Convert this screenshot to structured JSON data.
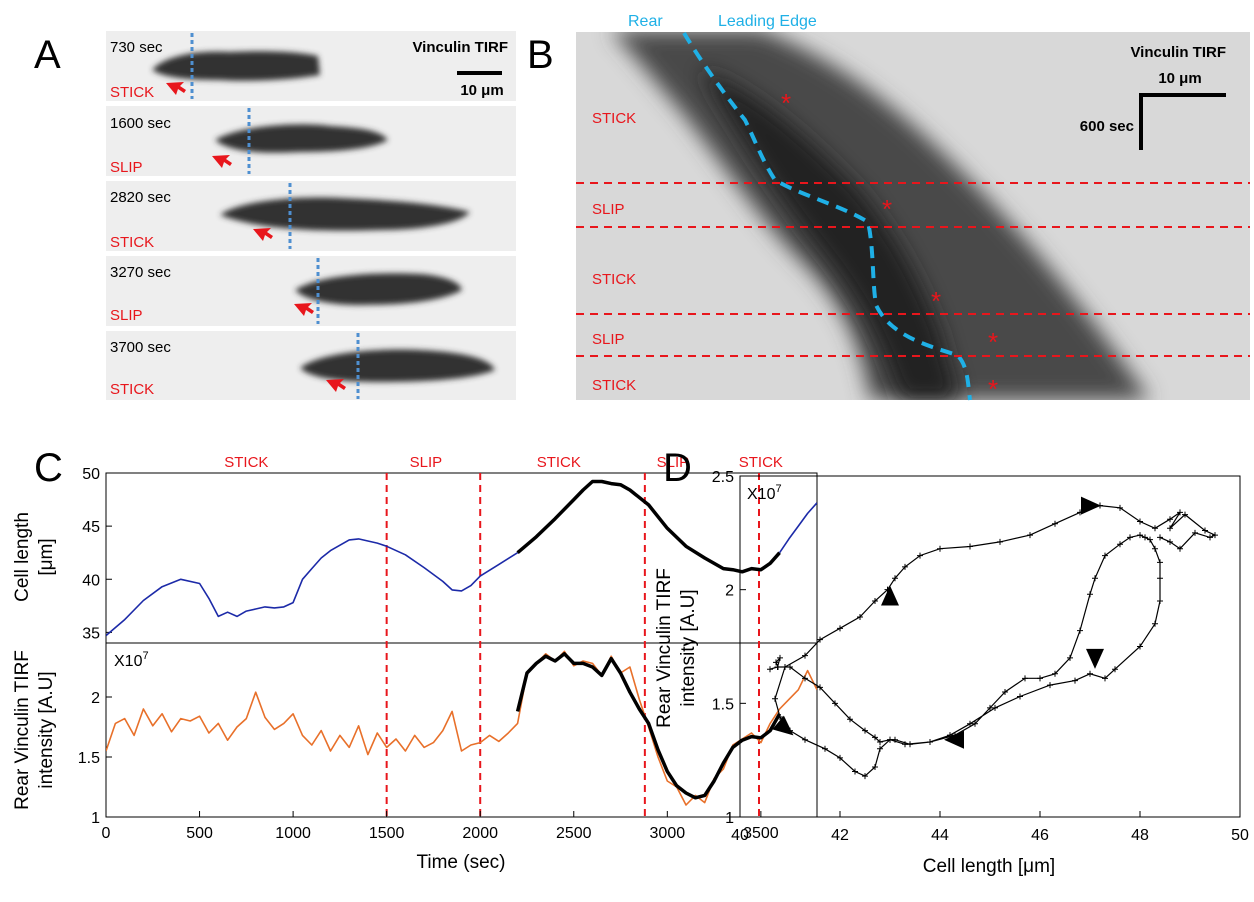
{
  "panel_labels": {
    "a": "A",
    "b": "B",
    "c": "C",
    "d": "D"
  },
  "colors": {
    "red": "#e8161c",
    "cyan": "#1fb0e6",
    "dotted_blue": "#4e8fd0",
    "blue_line": "#1c2aa8",
    "orange_line": "#e8702a",
    "black": "#000000"
  },
  "panelA": {
    "title": "Vinculin TIRF",
    "scale_label": "10 μm",
    "frames": [
      {
        "time": "730 sec",
        "state": "STICK"
      },
      {
        "time": "1600 sec",
        "state": "SLIP"
      },
      {
        "time": "2820 sec",
        "state": "STICK"
      },
      {
        "time": "3270 sec",
        "state": "SLIP"
      },
      {
        "time": "3700 sec",
        "state": "STICK"
      }
    ]
  },
  "panelB": {
    "title": "Vinculin TIRF",
    "scale_x": "10 μm",
    "scale_t": "600 sec",
    "rear_label": "Rear",
    "leading_label": "Leading Edge",
    "phases": [
      "STICK",
      "SLIP",
      "STICK",
      "SLIP",
      "STICK"
    ],
    "asterisk": "*"
  },
  "chart_data": [
    {
      "id": "C-top",
      "type": "line",
      "ylabel_lines": [
        "Cell length",
        "[μm]"
      ],
      "xlim": [
        0,
        3800
      ],
      "ylim": [
        34,
        50
      ],
      "yticks": [
        35,
        40,
        45,
        50
      ],
      "ytick_labels": [
        "35",
        "40",
        "45",
        "50"
      ],
      "phase_labels": [
        "STICK",
        "SLIP",
        "STICK",
        "SLIP",
        "STICK"
      ],
      "phase_label_x": [
        750,
        1710,
        2420,
        3030,
        3500
      ],
      "phase_boundaries": [
        1500,
        2000,
        2880,
        3490
      ],
      "series": [
        {
          "name": "Cell length",
          "color": "#1c2aa8",
          "x": [
            0,
            100,
            200,
            300,
            400,
            500,
            550,
            600,
            650,
            700,
            750,
            800,
            850,
            900,
            950,
            1000,
            1050,
            1100,
            1150,
            1200,
            1300,
            1350,
            1400,
            1450,
            1500,
            1600,
            1700,
            1800,
            1850,
            1900,
            1950,
            2000,
            2100,
            2200
          ],
          "y": [
            34.7,
            36.2,
            38.0,
            39.3,
            40.0,
            39.6,
            38.2,
            36.5,
            36.9,
            36.5,
            37.0,
            37.2,
            37.4,
            37.3,
            37.4,
            37.8,
            40.0,
            41.0,
            42.0,
            42.7,
            43.7,
            43.8,
            43.6,
            43.4,
            43.1,
            42.3,
            41.1,
            39.8,
            39.0,
            38.9,
            39.4,
            40.3,
            41.4,
            42.5
          ]
        },
        {
          "name": "Cell length (fit)",
          "color": "#000000",
          "x": [
            2200,
            2300,
            2400,
            2500,
            2550,
            2600,
            2650,
            2700,
            2750,
            2800,
            2900,
            3000,
            3100,
            3200,
            3300,
            3350,
            3400,
            3450,
            3500,
            3550,
            3600
          ],
          "y": [
            42.5,
            44.0,
            45.7,
            47.5,
            48.4,
            49.2,
            49.2,
            49.0,
            48.9,
            48.4,
            47.0,
            44.8,
            43.1,
            42.0,
            41.0,
            40.9,
            40.7,
            41.0,
            40.9,
            41.5,
            42.5
          ]
        },
        {
          "name": "Cell length (tail)",
          "color": "#1c2aa8",
          "x": [
            3600,
            3650,
            3700,
            3750,
            3800
          ],
          "y": [
            42.5,
            43.8,
            45.0,
            46.2,
            47.2
          ]
        }
      ]
    },
    {
      "id": "C-bottom",
      "type": "line",
      "ylabel_lines": [
        "Rear Vinculin TIRF",
        "intensity [A.U]"
      ],
      "xlabel": "Time (sec)",
      "exponent_label": "X10",
      "exponent_sup": "7",
      "xlim": [
        0,
        3800
      ],
      "ylim": [
        1.0,
        2.45
      ],
      "xticks": [
        0,
        500,
        1000,
        1500,
        2000,
        2500,
        3000,
        3500
      ],
      "xtick_labels": [
        "0",
        "500",
        "1000",
        "1500",
        "2000",
        "2500",
        "3000",
        "3500"
      ],
      "yticks": [
        1.0,
        1.5,
        2.0
      ],
      "ytick_labels": [
        "1",
        "1.5",
        "2"
      ],
      "phase_boundaries": [
        1500,
        2000,
        2880,
        3490
      ],
      "series": [
        {
          "name": "Rear vinculin intensity",
          "color": "#e8702a",
          "x": [
            0,
            50,
            100,
            150,
            200,
            250,
            300,
            350,
            400,
            450,
            500,
            550,
            600,
            650,
            700,
            750,
            800,
            850,
            900,
            950,
            1000,
            1050,
            1100,
            1150,
            1200,
            1250,
            1300,
            1350,
            1400,
            1450,
            1500,
            1550,
            1600,
            1650,
            1700,
            1750,
            1800,
            1850,
            1900,
            1950,
            2000,
            2050,
            2100,
            2150,
            2200,
            2250,
            2300,
            2350,
            2400,
            2450,
            2500,
            2550,
            2600,
            2650,
            2700,
            2750,
            2800,
            2850,
            2900,
            2950,
            3000,
            3050,
            3100,
            3150,
            3200,
            3250,
            3300,
            3350,
            3400,
            3450,
            3500,
            3550,
            3600,
            3650,
            3700,
            3750,
            3800
          ],
          "y": [
            1.55,
            1.78,
            1.82,
            1.68,
            1.9,
            1.76,
            1.86,
            1.71,
            1.82,
            1.8,
            1.84,
            1.7,
            1.78,
            1.64,
            1.75,
            1.82,
            2.04,
            1.83,
            1.73,
            1.78,
            1.86,
            1.68,
            1.6,
            1.72,
            1.55,
            1.68,
            1.58,
            1.76,
            1.52,
            1.7,
            1.58,
            1.65,
            1.55,
            1.68,
            1.58,
            1.62,
            1.72,
            1.88,
            1.55,
            1.6,
            1.62,
            1.68,
            1.63,
            1.7,
            1.78,
            2.2,
            2.28,
            2.36,
            2.3,
            2.38,
            2.26,
            2.3,
            2.28,
            2.18,
            2.34,
            2.2,
            2.25,
            1.98,
            1.75,
            1.5,
            1.3,
            1.25,
            1.1,
            1.18,
            1.12,
            1.32,
            1.4,
            1.6,
            1.65,
            1.7,
            1.62,
            1.78,
            1.9,
            1.98,
            2.06,
            2.22,
            2.06
          ]
        },
        {
          "name": "Rear vinculin intensity (fit)",
          "color": "#000000",
          "x": [
            2200,
            2250,
            2300,
            2350,
            2400,
            2450,
            2500,
            2550,
            2600,
            2650,
            2700,
            2750,
            2800,
            2850,
            2900,
            2950,
            3000,
            3050,
            3100,
            3150,
            3200,
            3250,
            3300,
            3350,
            3400,
            3450,
            3500,
            3550,
            3600
          ],
          "y": [
            1.88,
            2.2,
            2.28,
            2.34,
            2.3,
            2.36,
            2.28,
            2.28,
            2.25,
            2.18,
            2.32,
            2.2,
            2.04,
            1.9,
            1.78,
            1.56,
            1.38,
            1.26,
            1.2,
            1.16,
            1.18,
            1.3,
            1.45,
            1.58,
            1.64,
            1.67,
            1.66,
            1.72,
            1.86
          ]
        }
      ]
    },
    {
      "id": "D",
      "type": "line",
      "xlabel": "Cell length [μm]",
      "ylabel_lines": [
        "Rear Vinculin TIRF",
        "intensity [A.U]"
      ],
      "exponent_label": "X10",
      "exponent_sup": "7",
      "xlim": [
        40,
        50
      ],
      "ylim": [
        1.0,
        2.5
      ],
      "xticks": [
        40,
        42,
        44,
        46,
        48,
        50
      ],
      "xtick_labels": [
        "40",
        "42",
        "44",
        "46",
        "48",
        "50"
      ],
      "yticks": [
        1.0,
        1.5,
        2.0,
        2.5
      ],
      "ytick_labels": [
        "1",
        "1.5",
        "2",
        "2.5"
      ],
      "series": [
        {
          "name": "Trajectory",
          "color": "#000000",
          "x": [
            40.6,
            40.75,
            40.8,
            40.72,
            40.76,
            41.0,
            41.3,
            41.6,
            41.9,
            42.2,
            42.5,
            42.7,
            42.8,
            43.0,
            43.3,
            43.8,
            44.2,
            44.6,
            45.1,
            45.6,
            46.2,
            46.7,
            47.0,
            47.3,
            47.5,
            48.0,
            48.3,
            48.4,
            48.4,
            48.4,
            48.3,
            48.2,
            48.1,
            48.0,
            47.8,
            47.6,
            47.3,
            47.1,
            47.0,
            46.8,
            46.6,
            46.3,
            46.0,
            45.7,
            45.3,
            45.0,
            44.7,
            44.3,
            43.8,
            43.4,
            43.1,
            43.0,
            42.8,
            42.7,
            42.5,
            42.3,
            42.0,
            41.7,
            41.3,
            41.0,
            40.8,
            40.7,
            40.9,
            41.3,
            41.6,
            42.0,
            42.4,
            42.7,
            42.95,
            43.1,
            43.3,
            43.6,
            44.0,
            44.6,
            45.2,
            45.8,
            46.3,
            46.8,
            47.2,
            47.6,
            48.0,
            48.3,
            48.6,
            48.8,
            48.6,
            48.9,
            49.3,
            49.5,
            49.4,
            49.1,
            48.8,
            48.6,
            48.4
          ],
          "y": [
            1.65,
            1.66,
            1.7,
            1.68,
            1.66,
            1.66,
            1.61,
            1.57,
            1.5,
            1.43,
            1.38,
            1.35,
            1.33,
            1.34,
            1.32,
            1.33,
            1.36,
            1.41,
            1.48,
            1.53,
            1.58,
            1.6,
            1.63,
            1.61,
            1.65,
            1.75,
            1.85,
            1.95,
            2.05,
            2.12,
            2.18,
            2.22,
            2.23,
            2.24,
            2.23,
            2.2,
            2.15,
            2.05,
            1.98,
            1.82,
            1.7,
            1.63,
            1.61,
            1.61,
            1.55,
            1.48,
            1.41,
            1.36,
            1.33,
            1.32,
            1.34,
            1.34,
            1.3,
            1.22,
            1.18,
            1.2,
            1.26,
            1.3,
            1.34,
            1.38,
            1.44,
            1.52,
            1.66,
            1.71,
            1.78,
            1.83,
            1.88,
            1.95,
            2.0,
            2.05,
            2.1,
            2.15,
            2.18,
            2.19,
            2.21,
            2.24,
            2.29,
            2.34,
            2.37,
            2.36,
            2.3,
            2.27,
            2.31,
            2.34,
            2.27,
            2.33,
            2.26,
            2.24,
            2.23,
            2.25,
            2.18,
            2.21,
            2.23
          ]
        }
      ],
      "arrows": [
        {
          "x": 43.0,
          "y": 1.97,
          "direction": "up"
        },
        {
          "x": 47.0,
          "y": 2.37,
          "direction": "right"
        },
        {
          "x": 47.1,
          "y": 1.7,
          "direction": "down"
        },
        {
          "x": 44.3,
          "y": 1.34,
          "direction": "left"
        },
        {
          "x": 40.9,
          "y": 1.39,
          "direction": "down-right"
        }
      ]
    }
  ]
}
